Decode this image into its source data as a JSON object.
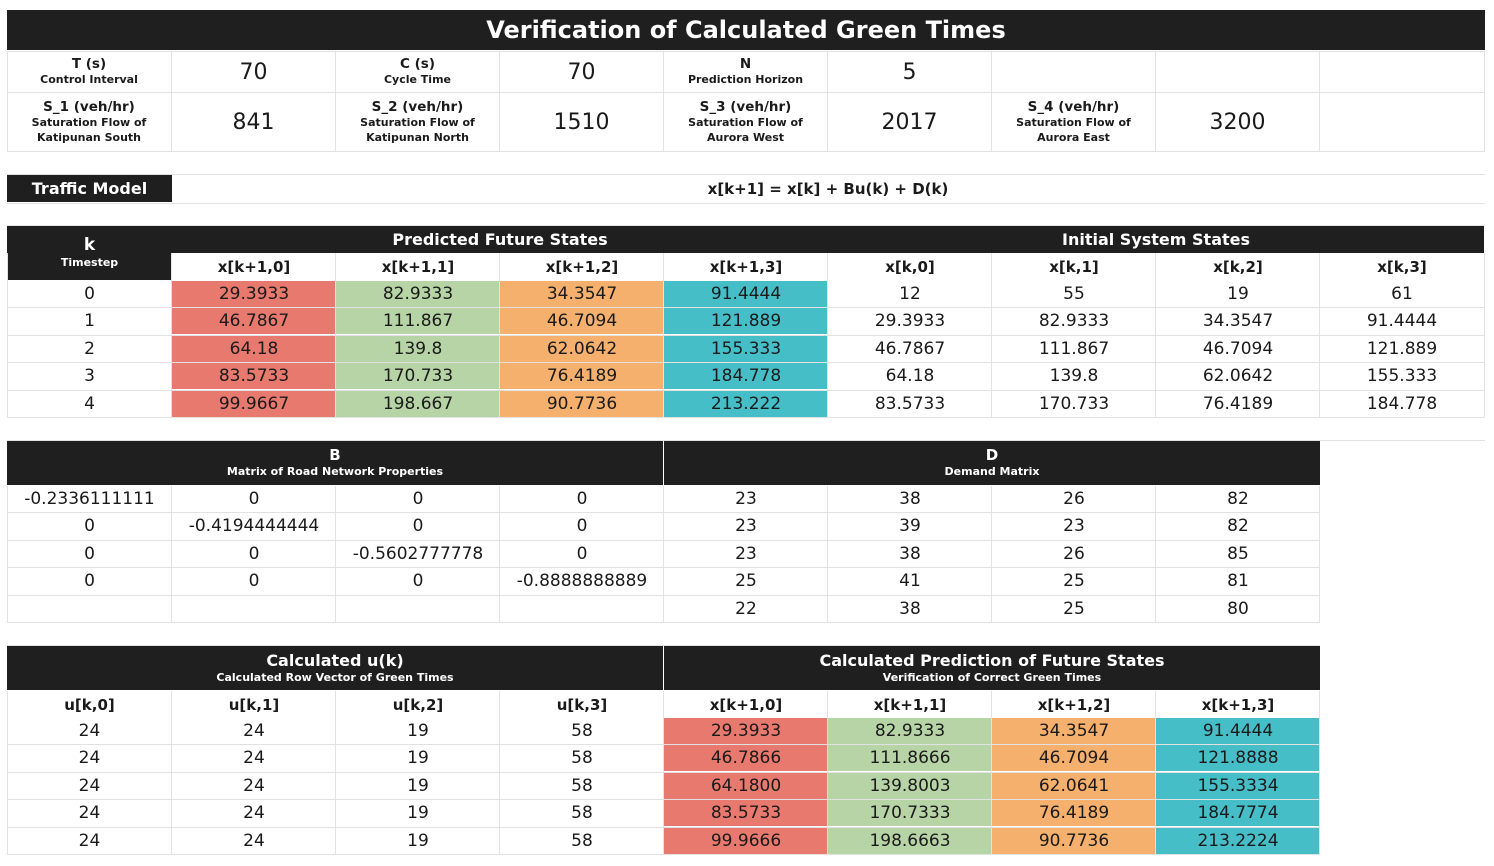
{
  "title": "Verification of Calculated Green Times",
  "params": {
    "T": {
      "label": "T (s)",
      "sub": "Control Interval",
      "value": "70"
    },
    "C": {
      "label": "C (s)",
      "sub": "Cycle Time",
      "value": "70"
    },
    "N": {
      "label": "N",
      "sub": "Prediction Horizon",
      "value": "5"
    },
    "S1": {
      "label": "S_1 (veh/hr)",
      "sub": "Saturation Flow of Katipunan South",
      "value": "841"
    },
    "S2": {
      "label": "S_2 (veh/hr)",
      "sub": "Saturation Flow of Katipunan North",
      "value": "1510"
    },
    "S3": {
      "label": "S_3 (veh/hr)",
      "sub": "Saturation Flow of Aurora West",
      "value": "2017"
    },
    "S4": {
      "label": "S_4 (veh/hr)",
      "sub": "Saturation Flow of Aurora East",
      "value": "3200"
    }
  },
  "model": {
    "label": "Traffic Model",
    "equation": "x[k+1] = x[k] + Bu(k) + D(k)"
  },
  "states": {
    "k_label": "k",
    "k_sub": "Timestep",
    "predicted_title": "Predicted Future States",
    "initial_title": "Initial System States",
    "pred_headers": [
      "x[k+1,0]",
      "x[k+1,1]",
      "x[k+1,2]",
      "x[k+1,3]"
    ],
    "init_headers": [
      "x[k,0]",
      "x[k,1]",
      "x[k,2]",
      "x[k,3]"
    ],
    "rows": [
      [
        "0",
        "29.3933",
        "82.9333",
        "34.3547",
        "91.4444",
        "12",
        "55",
        "19",
        "61"
      ],
      [
        "1",
        "46.7867",
        "111.867",
        "46.7094",
        "121.889",
        "29.3933",
        "82.9333",
        "34.3547",
        "91.4444"
      ],
      [
        "2",
        "64.18",
        "139.8",
        "62.0642",
        "155.333",
        "46.7867",
        "111.867",
        "46.7094",
        "121.889"
      ],
      [
        "3",
        "83.5733",
        "170.733",
        "76.4189",
        "184.778",
        "64.18",
        "139.8",
        "62.0642",
        "155.333"
      ],
      [
        "4",
        "99.9667",
        "198.667",
        "90.7736",
        "213.222",
        "83.5733",
        "170.733",
        "76.4189",
        "184.778"
      ]
    ]
  },
  "matrices": {
    "B_title": "B",
    "B_sub": "Matrix of Road Network Properties",
    "D_title": "D",
    "D_sub": "Demand Matrix",
    "rows": [
      [
        "-0.2336111111",
        "0",
        "0",
        "0",
        "23",
        "38",
        "26",
        "82"
      ],
      [
        "0",
        "-0.4194444444",
        "0",
        "0",
        "23",
        "39",
        "23",
        "82"
      ],
      [
        "0",
        "0",
        "-0.5602777778",
        "0",
        "23",
        "38",
        "26",
        "85"
      ],
      [
        "0",
        "0",
        "0",
        "-0.8888888889",
        "25",
        "41",
        "25",
        "81"
      ],
      [
        "",
        "",
        "",
        "",
        "22",
        "38",
        "25",
        "80"
      ]
    ]
  },
  "results": {
    "u_title": "Calculated u(k)",
    "u_sub": "Calculated Row Vector of Green Times",
    "pred_title": "Calculated Prediction of Future States",
    "pred_sub": "Verification of Correct Green Times",
    "headers": [
      "u[k,0]",
      "u[k,1]",
      "u[k,2]",
      "u[k,3]",
      "x[k+1,0]",
      "x[k+1,1]",
      "x[k+1,2]",
      "x[k+1,3]"
    ],
    "rows": [
      [
        "24",
        "24",
        "19",
        "58",
        "29.3933",
        "82.9333",
        "34.3547",
        "91.4444"
      ],
      [
        "24",
        "24",
        "19",
        "58",
        "46.7866",
        "111.8666",
        "46.7094",
        "121.8888"
      ],
      [
        "24",
        "24",
        "19",
        "58",
        "64.1800",
        "139.8003",
        "62.0641",
        "155.3334"
      ],
      [
        "24",
        "24",
        "19",
        "58",
        "83.5733",
        "170.7333",
        "76.4189",
        "184.7774"
      ],
      [
        "24",
        "24",
        "19",
        "58",
        "99.9666",
        "198.6663",
        "90.7736",
        "213.2224"
      ]
    ]
  },
  "colors": {
    "x0": "#e8796f",
    "x1": "#b7d4a6",
    "x2": "#f4b06c",
    "x3": "#46bec8",
    "header": "#1f1f1f"
  }
}
